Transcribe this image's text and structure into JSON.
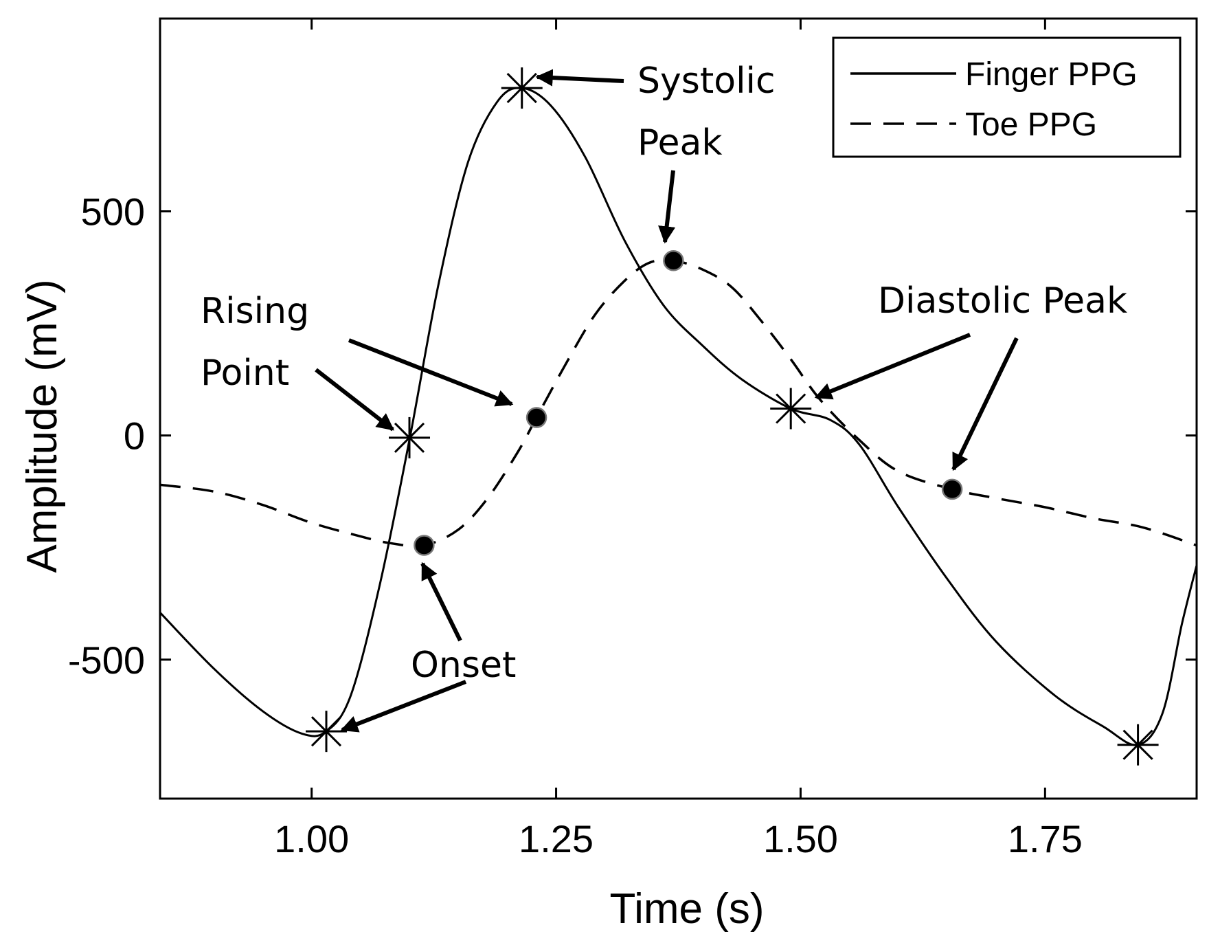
{
  "chart_data": {
    "type": "line",
    "xlabel": "Time (s)",
    "ylabel": "Amplitude (mV)",
    "xlim": [
      0.845,
      1.905
    ],
    "ylim": [
      -810,
      930
    ],
    "x_ticks": [
      {
        "value": 1.0,
        "label": "1.00"
      },
      {
        "value": 1.25,
        "label": "1.25"
      },
      {
        "value": 1.5,
        "label": "1.50"
      },
      {
        "value": 1.75,
        "label": "1.75"
      }
    ],
    "y_ticks": [
      {
        "value": 500,
        "label": "500"
      },
      {
        "value": 0,
        "label": "0"
      },
      {
        "value": -500,
        "label": "-500"
      }
    ],
    "grid": false,
    "legend_position": "top-right",
    "series": [
      {
        "name": "Finger PPG",
        "style": "solid",
        "color": "#000000",
        "points": [
          [
            0.845,
            -395
          ],
          [
            0.9,
            -520
          ],
          [
            0.95,
            -615
          ],
          [
            0.99,
            -665
          ],
          [
            1.015,
            -660
          ],
          [
            1.04,
            -580
          ],
          [
            1.07,
            -330
          ],
          [
            1.1,
            -10
          ],
          [
            1.13,
            340
          ],
          [
            1.16,
            610
          ],
          [
            1.19,
            745
          ],
          [
            1.215,
            775
          ],
          [
            1.245,
            735
          ],
          [
            1.28,
            620
          ],
          [
            1.32,
            435
          ],
          [
            1.36,
            290
          ],
          [
            1.4,
            200
          ],
          [
            1.44,
            125
          ],
          [
            1.49,
            60
          ],
          [
            1.53,
            35
          ],
          [
            1.56,
            -20
          ],
          [
            1.6,
            -160
          ],
          [
            1.65,
            -320
          ],
          [
            1.7,
            -460
          ],
          [
            1.76,
            -580
          ],
          [
            1.81,
            -650
          ],
          [
            1.845,
            -690
          ],
          [
            1.87,
            -620
          ],
          [
            1.89,
            -420
          ],
          [
            1.905,
            -290
          ]
        ],
        "markers": [
          [
            1.015,
            -660
          ],
          [
            1.1,
            -5
          ],
          [
            1.215,
            775
          ],
          [
            1.49,
            60
          ],
          [
            1.845,
            -690
          ]
        ],
        "marker": "asterisk"
      },
      {
        "name": "Toe PPG",
        "style": "dashed",
        "color": "#000000",
        "points": [
          [
            0.845,
            -110
          ],
          [
            0.9,
            -125
          ],
          [
            0.95,
            -155
          ],
          [
            1.0,
            -195
          ],
          [
            1.05,
            -225
          ],
          [
            1.08,
            -240
          ],
          [
            1.115,
            -245
          ],
          [
            1.15,
            -210
          ],
          [
            1.18,
            -140
          ],
          [
            1.21,
            -40
          ],
          [
            1.23,
            40
          ],
          [
            1.26,
            160
          ],
          [
            1.29,
            270
          ],
          [
            1.32,
            345
          ],
          [
            1.345,
            385
          ],
          [
            1.37,
            390
          ],
          [
            1.4,
            370
          ],
          [
            1.43,
            330
          ],
          [
            1.46,
            255
          ],
          [
            1.49,
            170
          ],
          [
            1.52,
            80
          ],
          [
            1.56,
            -10
          ],
          [
            1.6,
            -80
          ],
          [
            1.655,
            -120
          ],
          [
            1.7,
            -140
          ],
          [
            1.75,
            -160
          ],
          [
            1.8,
            -185
          ],
          [
            1.85,
            -205
          ],
          [
            1.905,
            -245
          ]
        ],
        "markers": [
          [
            1.115,
            -245
          ],
          [
            1.23,
            40
          ],
          [
            1.37,
            390
          ],
          [
            1.655,
            -120
          ]
        ],
        "marker": "dot"
      }
    ],
    "annotations": [
      {
        "lines": [
          "Systolic",
          "Peak"
        ]
      },
      {
        "lines": [
          "Rising",
          "Point"
        ]
      },
      {
        "lines": [
          "Diastolic Peak"
        ]
      },
      {
        "lines": [
          "Onset"
        ]
      }
    ]
  }
}
